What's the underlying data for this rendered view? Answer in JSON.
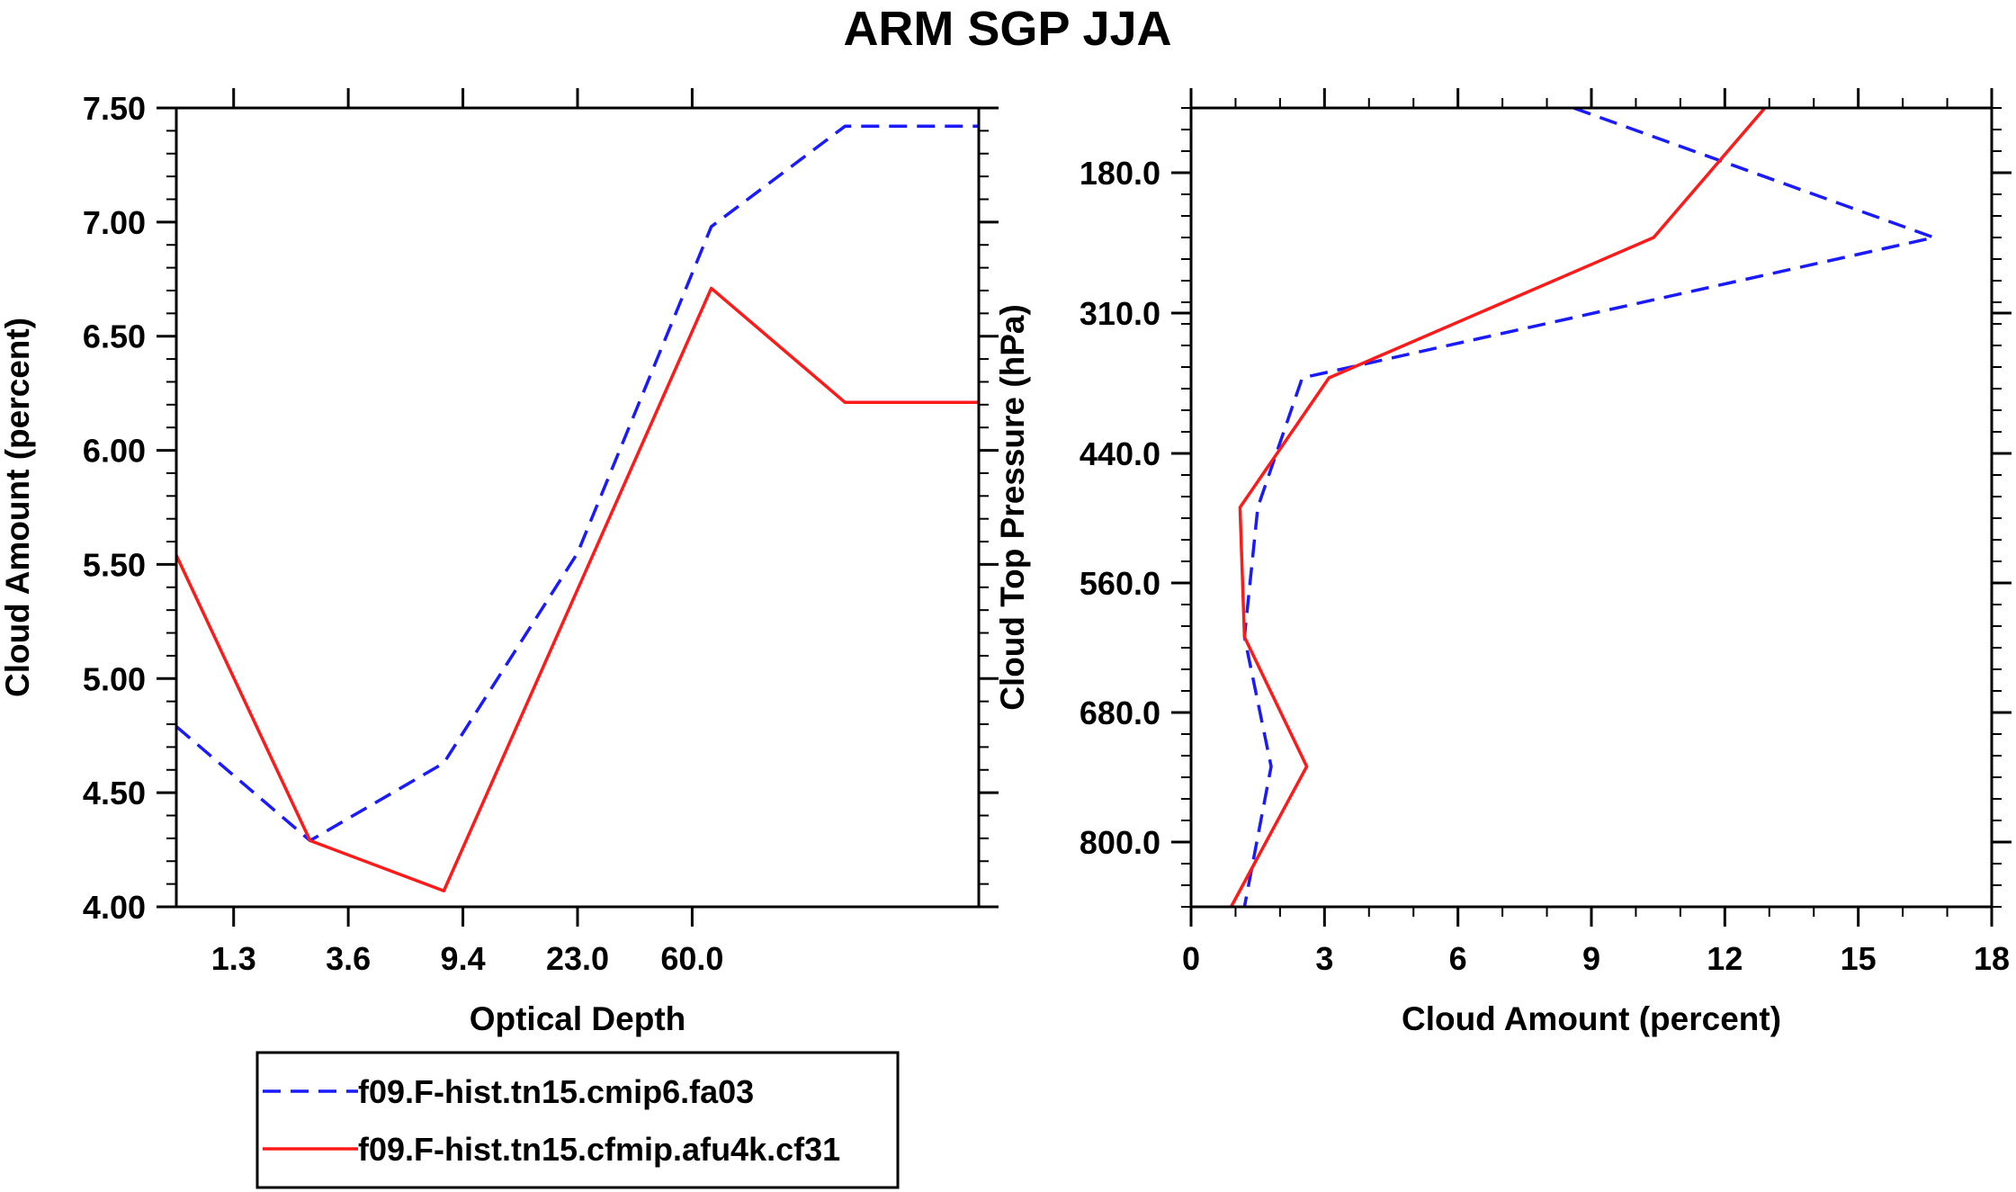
{
  "title": "ARM SGP JJA",
  "chart_data": [
    {
      "type": "line",
      "xlabel": "Optical Depth",
      "ylabel": "Cloud Amount (percent)",
      "x_categories": [
        "1.3",
        "3.6",
        "9.4",
        "23.0",
        "60.0"
      ],
      "x_index": [
        0,
        1,
        2,
        3,
        4,
        5,
        6
      ],
      "ylim": [
        4.0,
        7.5
      ],
      "yticks": [
        "4.00",
        "4.50",
        "5.00",
        "5.50",
        "6.00",
        "6.50",
        "7.00",
        "7.50"
      ],
      "series": [
        {
          "name": "f09.F-hist.tn15.cmip6.fa03",
          "color": "#1a1aff",
          "dash": "dashed",
          "values": [
            4.79,
            4.29,
            4.63,
            5.55,
            6.98,
            7.42,
            7.42
          ]
        },
        {
          "name": "f09.F-hist.tn15.cfmip.afu4k.cf31",
          "color": "#ff1a1a",
          "dash": "solid",
          "values": [
            5.54,
            4.29,
            4.07,
            5.39,
            6.71,
            6.21,
            6.21
          ]
        }
      ]
    },
    {
      "type": "line",
      "xlabel": "Cloud Amount (percent)",
      "ylabel": "Cloud Top Pressure (hPa)",
      "xlim": [
        0,
        18
      ],
      "xticks": [
        "0",
        "3",
        "6",
        "9",
        "12",
        "15",
        "18"
      ],
      "ylim": [
        120,
        860
      ],
      "yticks": [
        "180.0",
        "310.0",
        "440.0",
        "560.0",
        "680.0",
        "800.0"
      ],
      "series": [
        {
          "name": "f09.F-hist.tn15.cmip6.fa03",
          "color": "#1a1aff",
          "dash": "dashed",
          "pressure": [
            120,
            240,
            370,
            490,
            610,
            730,
            860
          ],
          "values": [
            8.6,
            16.7,
            2.5,
            1.5,
            1.2,
            1.8,
            1.2
          ]
        },
        {
          "name": "f09.F-hist.tn15.cfmip.afu4k.cf31",
          "color": "#ff1a1a",
          "dash": "solid",
          "pressure": [
            120,
            240,
            370,
            490,
            610,
            730,
            860
          ],
          "values": [
            12.9,
            10.4,
            3.1,
            1.1,
            1.2,
            2.6,
            0.9
          ]
        }
      ]
    }
  ],
  "legend": {
    "entries": [
      {
        "label": "f09.F-hist.tn15.cmip6.fa03",
        "color": "#1a1aff",
        "dash": "dashed"
      },
      {
        "label": "f09.F-hist.tn15.cfmip.afu4k.cf31",
        "color": "#ff1a1a",
        "dash": "solid"
      }
    ]
  }
}
